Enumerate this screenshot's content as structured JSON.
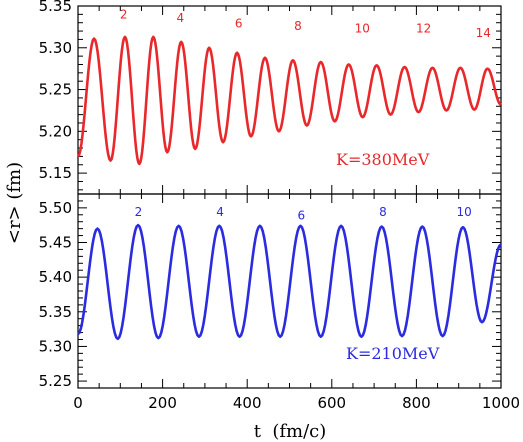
{
  "figure": {
    "xlabel": "t  (fm/c)",
    "ylabel": "<r> (fm)"
  },
  "chart_data": [
    {
      "type": "line",
      "panel": "top",
      "annotation": "K=380MeV",
      "color": "#e8282b",
      "xlim": [
        0,
        1000
      ],
      "ylim": [
        5.125,
        5.35
      ],
      "x_ticks": [
        "0",
        "200",
        "400",
        "600",
        "800",
        "1000"
      ],
      "y_ticks": [
        "5.15",
        "5.20",
        "5.25",
        "5.30",
        "5.35"
      ],
      "y_tick_values": [
        5.15,
        5.2,
        5.25,
        5.3,
        5.35
      ],
      "peak_labels": [
        {
          "text": "2",
          "x": 108,
          "y": 5.335
        },
        {
          "text": "4",
          "x": 242,
          "y": 5.331
        },
        {
          "text": "6",
          "x": 380,
          "y": 5.324
        },
        {
          "text": "8",
          "x": 520,
          "y": 5.321
        },
        {
          "text": "10",
          "x": 672,
          "y": 5.318
        },
        {
          "text": "12",
          "x": 817,
          "y": 5.318
        },
        {
          "text": "14",
          "x": 958,
          "y": 5.313
        }
      ],
      "series": [
        {
          "points": [
            [
              0,
              5.17
            ],
            [
              38,
              5.311
            ],
            [
              77,
              5.165
            ],
            [
              111,
              5.313
            ],
            [
              145,
              5.161
            ],
            [
              178,
              5.313
            ],
            [
              211,
              5.175
            ],
            [
              244,
              5.307
            ],
            [
              277,
              5.179
            ],
            [
              310,
              5.3
            ],
            [
              343,
              5.187
            ],
            [
              376,
              5.294
            ],
            [
              409,
              5.194
            ],
            [
              442,
              5.288
            ],
            [
              475,
              5.2
            ],
            [
              508,
              5.285
            ],
            [
              541,
              5.207
            ],
            [
              574,
              5.283
            ],
            [
              607,
              5.212
            ],
            [
              640,
              5.28
            ],
            [
              673,
              5.217
            ],
            [
              706,
              5.279
            ],
            [
              739,
              5.22
            ],
            [
              772,
              5.277
            ],
            [
              805,
              5.223
            ],
            [
              838,
              5.276
            ],
            [
              871,
              5.225
            ],
            [
              904,
              5.276
            ],
            [
              937,
              5.226
            ],
            [
              968,
              5.275
            ],
            [
              1000,
              5.232
            ]
          ]
        }
      ]
    },
    {
      "type": "line",
      "panel": "bottom",
      "annotation": "K=210MeV",
      "color": "#2b2be0",
      "xlim": [
        0,
        1000
      ],
      "ylim": [
        5.24,
        5.52
      ],
      "x_ticks": [
        "0",
        "200",
        "400",
        "600",
        "800",
        "1000"
      ],
      "y_ticks": [
        "5.25",
        "5.30",
        "5.35",
        "5.40",
        "5.45",
        "5.50"
      ],
      "y_tick_values": [
        5.25,
        5.3,
        5.35,
        5.4,
        5.45,
        5.5
      ],
      "peak_labels": [
        {
          "text": "2",
          "x": 143,
          "y": 5.488
        },
        {
          "text": "4",
          "x": 336,
          "y": 5.488
        },
        {
          "text": "6",
          "x": 528,
          "y": 5.483
        },
        {
          "text": "8",
          "x": 721,
          "y": 5.488
        },
        {
          "text": "10",
          "x": 913,
          "y": 5.488
        }
      ],
      "series": [
        {
          "points": [
            [
              0,
              5.318
            ],
            [
              46,
              5.47
            ],
            [
              94,
              5.311
            ],
            [
              142,
              5.475
            ],
            [
              190,
              5.312
            ],
            [
              238,
              5.474
            ],
            [
              286,
              5.314
            ],
            [
              334,
              5.474
            ],
            [
              382,
              5.314
            ],
            [
              430,
              5.474
            ],
            [
              478,
              5.314
            ],
            [
              526,
              5.474
            ],
            [
              574,
              5.314
            ],
            [
              622,
              5.474
            ],
            [
              670,
              5.314
            ],
            [
              718,
              5.473
            ],
            [
              766,
              5.315
            ],
            [
              814,
              5.473
            ],
            [
              862,
              5.315
            ],
            [
              910,
              5.472
            ],
            [
              955,
              5.335
            ],
            [
              1000,
              5.447
            ]
          ]
        }
      ]
    }
  ]
}
